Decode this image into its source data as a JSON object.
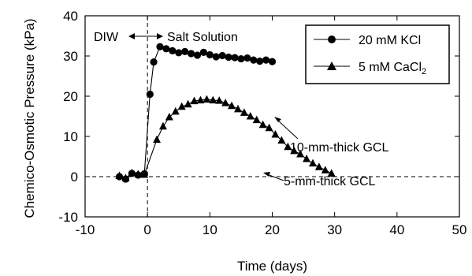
{
  "chart_data": {
    "type": "line",
    "xlabel": "Time (days)",
    "ylabel": "Chemico-Osmotic Pressure (kPa)",
    "xlim": [
      -10,
      50
    ],
    "ylim": [
      -10,
      40
    ],
    "xticks": [
      -10,
      0,
      10,
      20,
      30,
      40,
      50
    ],
    "yticks": [
      -10,
      0,
      10,
      20,
      30,
      40
    ],
    "grid": false,
    "legend_position": "top-right",
    "series": [
      {
        "name": "20 mM KCl",
        "marker": "circle",
        "color": "#000000",
        "x": [
          -4.5,
          -3.5,
          -2.5,
          -1.5,
          -0.5,
          0.4,
          1.0,
          2.0,
          3.0,
          4.0,
          5.0,
          6.0,
          7.0,
          8.0,
          9.0,
          10.0,
          11.0,
          12.0,
          13.0,
          14.0,
          15.0,
          16.0,
          17.0,
          18.0,
          19.0,
          20.0
        ],
        "y": [
          0.0,
          -0.6,
          0.8,
          0.4,
          0.7,
          20.5,
          28.5,
          32.3,
          31.8,
          31.3,
          30.8,
          31.1,
          30.6,
          30.2,
          30.9,
          30.3,
          29.8,
          30.1,
          29.7,
          29.6,
          29.3,
          29.5,
          29.0,
          28.7,
          29.0,
          28.6
        ]
      },
      {
        "name": "5 mM CaCl",
        "name_subscript": "2",
        "marker": "triangle",
        "color": "#000000",
        "x": [
          -4.5,
          -3.5,
          -2.5,
          -1.5,
          -0.5,
          1.5,
          2.5,
          3.5,
          4.5,
          5.5,
          6.5,
          7.5,
          8.5,
          9.5,
          10.5,
          11.5,
          12.5,
          13.5,
          14.5,
          15.5,
          16.5,
          17.5,
          18.5,
          19.5,
          20.5,
          21.5,
          22.5,
          23.5,
          24.5,
          25.5,
          26.5,
          27.5,
          28.5,
          29.5
        ],
        "y": [
          0.2,
          -0.4,
          0.9,
          0.6,
          0.5,
          9.2,
          12.5,
          14.8,
          16.2,
          17.4,
          18.0,
          18.8,
          19.0,
          19.2,
          19.0,
          18.9,
          18.3,
          17.6,
          16.8,
          15.9,
          15.0,
          14.1,
          12.9,
          12.1,
          10.5,
          9.0,
          7.4,
          6.4,
          5.6,
          4.4,
          3.3,
          2.4,
          1.6,
          0.8
        ]
      }
    ],
    "annotations": {
      "diw": "DIW",
      "salt": "Salt Solution",
      "thick10": "10-mm-thick GCL",
      "thick5": "5-mm-thick GCL"
    }
  }
}
